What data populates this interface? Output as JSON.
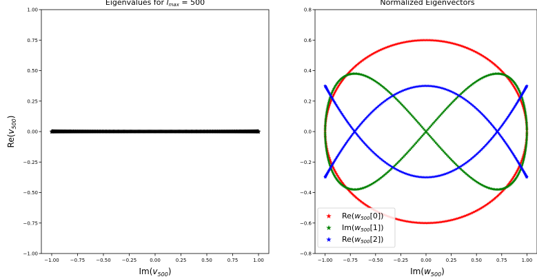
{
  "chart_data": [
    {
      "type": "scatter",
      "title_main": "Eigenvalues for ",
      "title_sym": "l",
      "title_sub": "max",
      "title_eq": " = 500",
      "xlabel_main": "Im(",
      "xlabel_sym": "v",
      "xlabel_sub": "500",
      "xlabel_end": ")",
      "ylabel_main": "Re(",
      "ylabel_sym": "v",
      "ylabel_sub": "500",
      "ylabel_end": ")",
      "xlim": [
        -1.1,
        1.1
      ],
      "ylim": [
        -1.0,
        1.0
      ],
      "xticks": [
        "−1.00",
        "−0.75",
        "−0.50",
        "−0.25",
        "0.00",
        "0.25",
        "0.50",
        "0.75",
        "1.00"
      ],
      "yticks": [
        "−1.00",
        "−0.75",
        "−0.50",
        "−0.25",
        "0.00",
        "0.25",
        "0.50",
        "0.75",
        "1.00"
      ],
      "points": {
        "x_range": [
          -1.0,
          1.0
        ],
        "y": 0.0,
        "count": 500,
        "color": "#000000"
      }
    },
    {
      "type": "scatter",
      "title": "Normalized Eigenvectors",
      "xlabel_main": "Im(",
      "xlabel_sym": "w",
      "xlabel_sub": "500",
      "xlabel_end": ")",
      "xlim": [
        -1.1,
        1.1
      ],
      "ylim": [
        -0.8,
        0.8
      ],
      "xticks": [
        "−1.00",
        "−0.75",
        "−0.50",
        "−0.25",
        "0.00",
        "0.25",
        "0.50",
        "0.75",
        "1.00"
      ],
      "yticks": [
        "−0.8",
        "−0.6",
        "−0.4",
        "−0.2",
        "0.0",
        "0.2",
        "0.4",
        "0.6",
        "0.8"
      ],
      "legend_position": "lower-left",
      "series": [
        {
          "name_pre": "Re(",
          "name_sym": "w",
          "name_sub": "500",
          "name_end": "[0])",
          "color": "#ff0000",
          "amplitude": 0.6,
          "order": 0
        },
        {
          "name_pre": "Im(",
          "name_sym": "w",
          "name_sub": "500",
          "name_end": "[1])",
          "color": "#008000",
          "amplitude": 0.38,
          "order": 1
        },
        {
          "name_pre": "Re(",
          "name_sym": "w",
          "name_sub": "500",
          "name_end": "[2])",
          "color": "#0000ff",
          "amplitude": 0.3,
          "order": 2
        }
      ]
    }
  ]
}
